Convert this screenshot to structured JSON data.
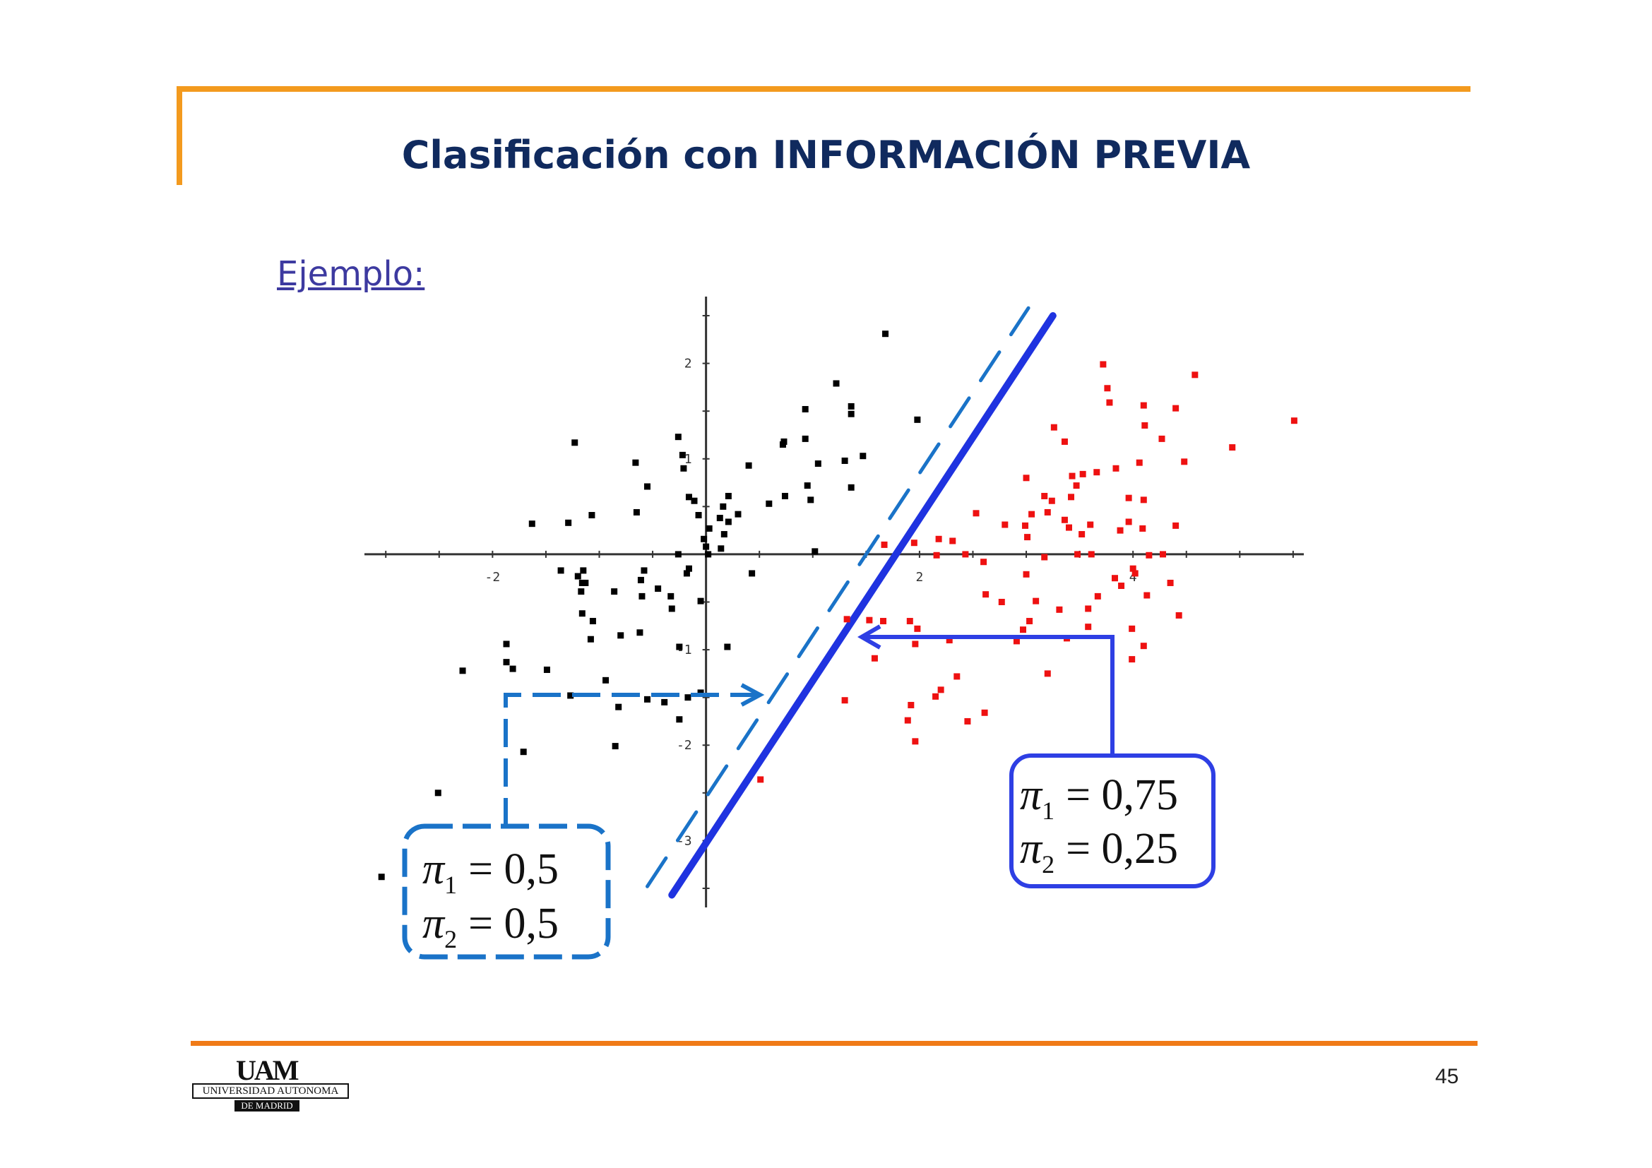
{
  "slide": {
    "title": "Clasificación con INFORMACIÓN PREVIA",
    "subtitle": "Ejemplo:",
    "page_number": "45"
  },
  "logo": {
    "mark": "UAM",
    "name": "UNIVERSIDAD AUTONOMA",
    "sub": "DE MADRID"
  },
  "annotations": {
    "equal_priors": {
      "line1_label": "π",
      "line1_sub": "1",
      "line1_value": "= 0,5",
      "line2_label": "π",
      "line2_sub": "2",
      "line2_value": "= 0,5"
    },
    "unequal_priors": {
      "line1_label": "π",
      "line1_sub": "1",
      "line1_value": "= 0,75",
      "line2_label": "π",
      "line2_sub": "2",
      "line2_value": "= 0,25"
    }
  },
  "colors": {
    "accent_orange": "#f39a1e",
    "title_navy": "#102a5e",
    "class1": "#000000",
    "class2": "#ee1111",
    "solid_boundary": "#1f33e0",
    "dashed_boundary": "#1a73c8"
  },
  "chart_data": {
    "type": "scatter",
    "xlim": [
      -3.2,
      5.6
    ],
    "ylim": [
      -3.7,
      2.7
    ],
    "x_ticks": [
      -2,
      2,
      4
    ],
    "y_ticks": [
      -3,
      -2,
      -1,
      1,
      2
    ],
    "x_tick_labels": [
      "-2",
      "2",
      "4"
    ],
    "y_tick_labels": [
      "-3",
      "-2",
      "-1",
      "1",
      "2"
    ],
    "series": [
      {
        "color": "#000000",
        "points": [
          [
            1.68,
            2.31
          ],
          [
            1.22,
            1.79
          ],
          [
            0.93,
            1.52
          ],
          [
            1.36,
            1.55
          ],
          [
            1.36,
            1.47
          ],
          [
            1.98,
            1.41
          ],
          [
            -1.23,
            1.17
          ],
          [
            -0.26,
            1.23
          ],
          [
            0.73,
            1.18
          ],
          [
            0.72,
            1.15
          ],
          [
            0.93,
            1.21
          ],
          [
            -0.22,
            1.04
          ],
          [
            -0.66,
            0.96
          ],
          [
            -0.21,
            0.9
          ],
          [
            1.05,
            0.95
          ],
          [
            1.3,
            0.98
          ],
          [
            1.47,
            1.03
          ],
          [
            0.4,
            0.93
          ],
          [
            -0.55,
            0.71
          ],
          [
            0.95,
            0.72
          ],
          [
            1.36,
            0.7
          ],
          [
            0.59,
            0.53
          ],
          [
            0.74,
            0.61
          ],
          [
            0.98,
            0.57
          ],
          [
            0.21,
            0.61
          ],
          [
            -0.16,
            0.6
          ],
          [
            -0.11,
            0.56
          ],
          [
            0.16,
            0.5
          ],
          [
            -0.65,
            0.44
          ],
          [
            -0.07,
            0.41
          ],
          [
            0.13,
            0.38
          ],
          [
            0.3,
            0.42
          ],
          [
            -1.07,
            0.41
          ],
          [
            -1.29,
            0.33
          ],
          [
            -1.63,
            0.32
          ],
          [
            0.21,
            0.34
          ],
          [
            0.03,
            0.27
          ],
          [
            0.17,
            0.21
          ],
          [
            -0.02,
            0.16
          ],
          [
            -0.26,
            0.0
          ],
          [
            1.02,
            0.03
          ],
          [
            0.14,
            0.06
          ],
          [
            0.0,
            0.08
          ],
          [
            0.02,
            0.0
          ],
          [
            -1.15,
            -0.17
          ],
          [
            -1.2,
            -0.23
          ],
          [
            -0.61,
            -0.27
          ],
          [
            -0.58,
            -0.17
          ],
          [
            -0.18,
            -0.2
          ],
          [
            -0.16,
            -0.15
          ],
          [
            -1.36,
            -0.17
          ],
          [
            -1.13,
            -0.3
          ],
          [
            -1.16,
            -0.3
          ],
          [
            -1.17,
            -0.39
          ],
          [
            -0.86,
            -0.39
          ],
          [
            -0.6,
            -0.44
          ],
          [
            -0.45,
            -0.36
          ],
          [
            -0.33,
            -0.44
          ],
          [
            0.43,
            -0.2
          ],
          [
            -0.32,
            -0.57
          ],
          [
            -1.16,
            -0.62
          ],
          [
            -1.06,
            -0.7
          ],
          [
            -0.05,
            -0.49
          ],
          [
            -1.08,
            -0.89
          ],
          [
            -0.62,
            -0.82
          ],
          [
            -0.8,
            -0.85
          ],
          [
            -0.25,
            -0.97
          ],
          [
            0.2,
            -0.97
          ],
          [
            -1.87,
            -0.94
          ],
          [
            -1.49,
            -1.21
          ],
          [
            -1.81,
            -1.2
          ],
          [
            -2.28,
            -1.22
          ],
          [
            -1.87,
            -1.13
          ],
          [
            -0.94,
            -1.32
          ],
          [
            -1.27,
            -1.48
          ],
          [
            -0.55,
            -1.52
          ],
          [
            -0.39,
            -1.55
          ],
          [
            -0.17,
            -1.5
          ],
          [
            -0.82,
            -1.6
          ],
          [
            -0.05,
            -1.45
          ],
          [
            -0.25,
            -1.73
          ],
          [
            -1.71,
            -2.07
          ],
          [
            -0.85,
            -2.01
          ],
          [
            -2.51,
            -2.5
          ],
          [
            -3.04,
            -3.38
          ]
        ]
      },
      {
        "color": "#ee1111",
        "points": [
          [
            3.72,
            1.99
          ],
          [
            5.51,
            1.4
          ],
          [
            4.58,
            1.88
          ],
          [
            4.1,
            1.56
          ],
          [
            4.4,
            1.53
          ],
          [
            3.76,
            1.74
          ],
          [
            3.78,
            1.59
          ],
          [
            4.11,
            1.35
          ],
          [
            3.26,
            1.33
          ],
          [
            4.27,
            1.21
          ],
          [
            3.36,
            1.18
          ],
          [
            4.93,
            1.12
          ],
          [
            4.48,
            0.97
          ],
          [
            4.06,
            0.96
          ],
          [
            3.84,
            0.9
          ],
          [
            3.66,
            0.86
          ],
          [
            3.53,
            0.84
          ],
          [
            3.43,
            0.82
          ],
          [
            3.47,
            0.72
          ],
          [
            3.0,
            0.8
          ],
          [
            3.17,
            0.61
          ],
          [
            3.24,
            0.56
          ],
          [
            3.42,
            0.6
          ],
          [
            3.96,
            0.59
          ],
          [
            4.1,
            0.57
          ],
          [
            2.53,
            0.43
          ],
          [
            3.05,
            0.42
          ],
          [
            3.2,
            0.44
          ],
          [
            3.36,
            0.36
          ],
          [
            2.18,
            0.16
          ],
          [
            2.99,
            0.3
          ],
          [
            3.01,
            0.18
          ],
          [
            3.6,
            0.31
          ],
          [
            2.8,
            0.31
          ],
          [
            3.4,
            0.28
          ],
          [
            3.52,
            0.21
          ],
          [
            4.4,
            0.3
          ],
          [
            3.96,
            0.34
          ],
          [
            4.09,
            0.27
          ],
          [
            3.88,
            0.25
          ],
          [
            2.31,
            0.14
          ],
          [
            2.43,
            0.0
          ],
          [
            2.16,
            -0.01
          ],
          [
            3.48,
            0.0
          ],
          [
            4.0,
            -0.15
          ],
          [
            1.67,
            0.1
          ],
          [
            1.95,
            0.12
          ],
          [
            2.6,
            -0.08
          ],
          [
            3.17,
            -0.03
          ],
          [
            4.15,
            -0.01
          ],
          [
            4.28,
            0.0
          ],
          [
            4.35,
            -0.3
          ],
          [
            4.02,
            -0.2
          ],
          [
            3.61,
            0.0
          ],
          [
            3.0,
            -0.21
          ],
          [
            3.83,
            -0.25
          ],
          [
            3.89,
            -0.33
          ],
          [
            2.62,
            -0.42
          ],
          [
            2.77,
            -0.5
          ],
          [
            3.09,
            -0.49
          ],
          [
            3.31,
            -0.58
          ],
          [
            3.58,
            -0.57
          ],
          [
            3.67,
            -0.44
          ],
          [
            4.13,
            -0.43
          ],
          [
            4.43,
            -0.64
          ],
          [
            3.03,
            -0.7
          ],
          [
            2.97,
            -0.79
          ],
          [
            3.38,
            -0.88
          ],
          [
            3.58,
            -0.76
          ],
          [
            3.99,
            -0.78
          ],
          [
            4.1,
            -0.96
          ],
          [
            1.32,
            -0.68
          ],
          [
            1.53,
            -0.69
          ],
          [
            1.66,
            -0.7
          ],
          [
            1.91,
            -0.7
          ],
          [
            1.96,
            -0.94
          ],
          [
            1.98,
            -0.78
          ],
          [
            2.28,
            -0.9
          ],
          [
            2.91,
            -0.91
          ],
          [
            1.58,
            -1.09
          ],
          [
            3.99,
            -1.1
          ],
          [
            2.35,
            -1.28
          ],
          [
            3.2,
            -1.25
          ],
          [
            2.2,
            -1.42
          ],
          [
            2.15,
            -1.49
          ],
          [
            1.92,
            -1.58
          ],
          [
            2.61,
            -1.66
          ],
          [
            1.3,
            -1.53
          ],
          [
            1.89,
            -1.74
          ],
          [
            2.45,
            -1.75
          ],
          [
            1.96,
            -1.96
          ],
          [
            0.51,
            -2.36
          ]
        ]
      }
    ],
    "boundaries": [
      {
        "style": "solid",
        "color": "#1f33e0",
        "from": [
          -0.32,
          -3.57
        ],
        "to": [
          3.25,
          2.5
        ]
      },
      {
        "style": "dashed",
        "color": "#1a73c8",
        "from": [
          -0.55,
          -3.48
        ],
        "to": [
          3.02,
          2.58
        ]
      }
    ]
  }
}
